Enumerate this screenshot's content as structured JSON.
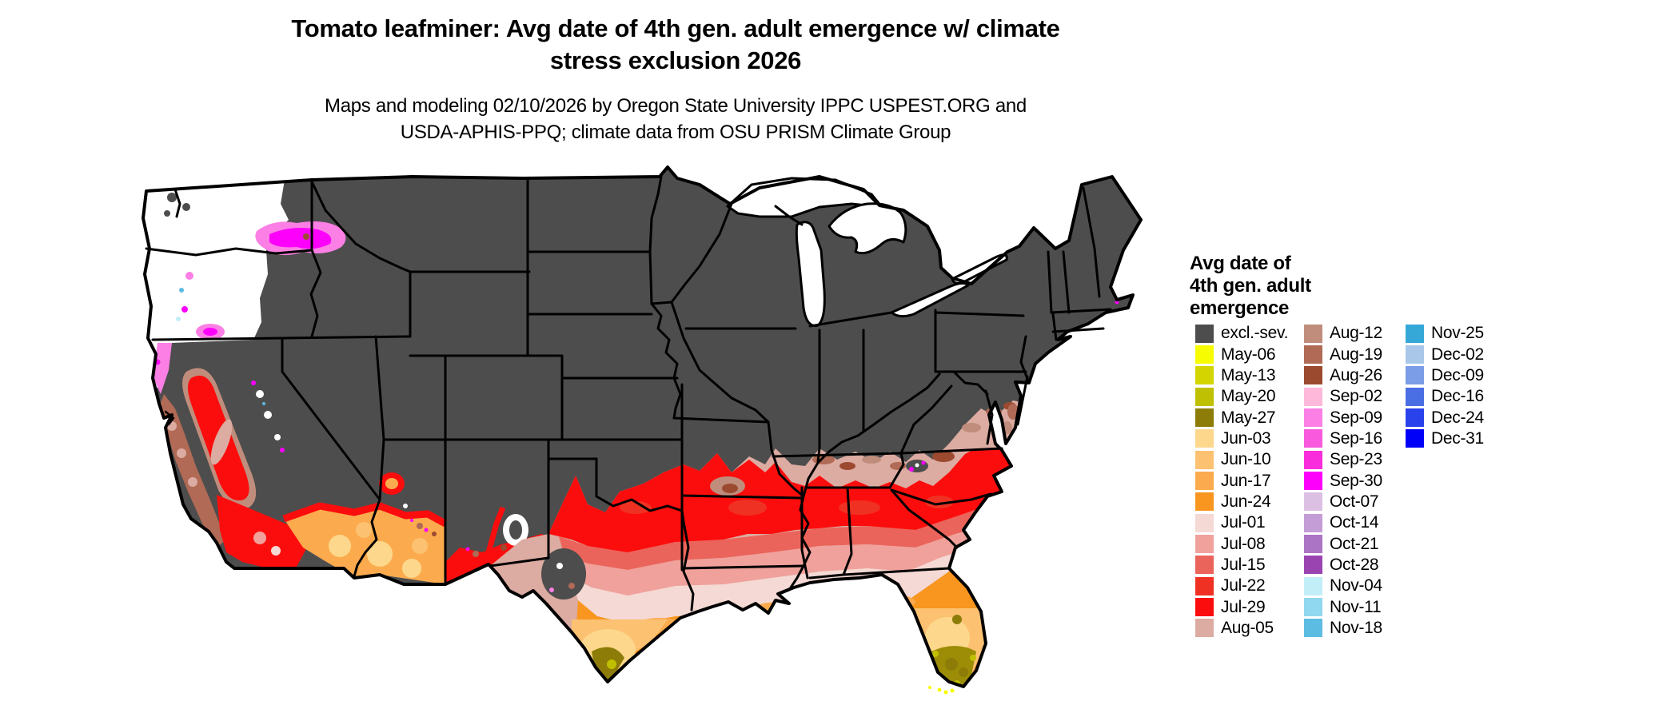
{
  "header": {
    "title_line1": "Tomato leafminer: Avg date of 4th gen. adult emergence w/ climate",
    "title_line2": "stress exclusion 2026",
    "subtitle_line1": "Maps and modeling 02/10/2026 by Oregon State University IPPC USPEST.ORG and",
    "subtitle_line2": "USDA-APHIS-PPQ; climate data from OSU PRISM Climate Group"
  },
  "legend": {
    "heading_lines": [
      "Avg date of",
      "4th gen. adult",
      "emergence"
    ],
    "columns": [
      [
        {
          "label": "excl.-sev.",
          "color": "#4d4d4d"
        },
        {
          "label": "May-06",
          "color": "#f8fc00"
        },
        {
          "label": "May-13",
          "color": "#d4d500"
        },
        {
          "label": "May-20",
          "color": "#c0c002"
        },
        {
          "label": "May-27",
          "color": "#8d7c08"
        },
        {
          "label": "Jun-03",
          "color": "#fdd88c"
        },
        {
          "label": "Jun-10",
          "color": "#fcc171"
        },
        {
          "label": "Jun-17",
          "color": "#fbab4e"
        },
        {
          "label": "Jun-24",
          "color": "#f8961f"
        },
        {
          "label": "Jul-01",
          "color": "#f5d9d4"
        },
        {
          "label": "Jul-08",
          "color": "#f0a19b"
        },
        {
          "label": "Jul-15",
          "color": "#eb645b"
        },
        {
          "label": "Jul-22",
          "color": "#ef3123"
        },
        {
          "label": "Jul-29",
          "color": "#fc0d0d"
        },
        {
          "label": "Aug-05",
          "color": "#dcaba1"
        }
      ],
      [
        {
          "label": "Aug-12",
          "color": "#c08d7c"
        },
        {
          "label": "Aug-19",
          "color": "#b06a55"
        },
        {
          "label": "Aug-26",
          "color": "#9c4a2f"
        },
        {
          "label": "Sep-02",
          "color": "#feb8da"
        },
        {
          "label": "Sep-09",
          "color": "#fb7fe4"
        },
        {
          "label": "Sep-16",
          "color": "#f959dd"
        },
        {
          "label": "Sep-23",
          "color": "#fa2ddd"
        },
        {
          "label": "Sep-30",
          "color": "#fc00fb"
        },
        {
          "label": "Oct-07",
          "color": "#dcc0e4"
        },
        {
          "label": "Oct-14",
          "color": "#c49cd6"
        },
        {
          "label": "Oct-21",
          "color": "#ab74c4"
        },
        {
          "label": "Oct-28",
          "color": "#9a44b2"
        },
        {
          "label": "Nov-04",
          "color": "#c2eef8"
        },
        {
          "label": "Nov-11",
          "color": "#90d8ef"
        },
        {
          "label": "Nov-18",
          "color": "#5cbce2"
        }
      ],
      [
        {
          "label": "Nov-25",
          "color": "#35a8d8"
        },
        {
          "label": "Dec-02",
          "color": "#a9c7e9"
        },
        {
          "label": "Dec-09",
          "color": "#7b9de8"
        },
        {
          "label": "Dec-16",
          "color": "#4a6ee4"
        },
        {
          "label": "Dec-24",
          "color": "#2a42ec"
        },
        {
          "label": "Dec-31",
          "color": "#0000f8"
        }
      ]
    ]
  },
  "colors": {
    "excluded": "#4d4d4d",
    "no_data": "#ffffff",
    "border": "#000000",
    "red": "#fc0d0d",
    "red2": "#ef3123",
    "j15": "#eb645b",
    "j08": "#f0a19b",
    "j01": "#f5d9d4",
    "rose": "#dcaba1",
    "br1": "#c08d7c",
    "br2": "#b06a55",
    "br3": "#9c4a2f",
    "o24": "#f8961f",
    "o17": "#fbab4e",
    "o10": "#fcc171",
    "o03": "#fdd88c",
    "olive": "#8d7c08",
    "olive_mix": "#9c8c06",
    "olive2": "#c0c002",
    "yellow": "#f8fc00",
    "mag": "#fc00fb",
    "magL": "#fb7fe4",
    "cyan": "#5cbce2",
    "cyanL": "#c2eef8"
  }
}
